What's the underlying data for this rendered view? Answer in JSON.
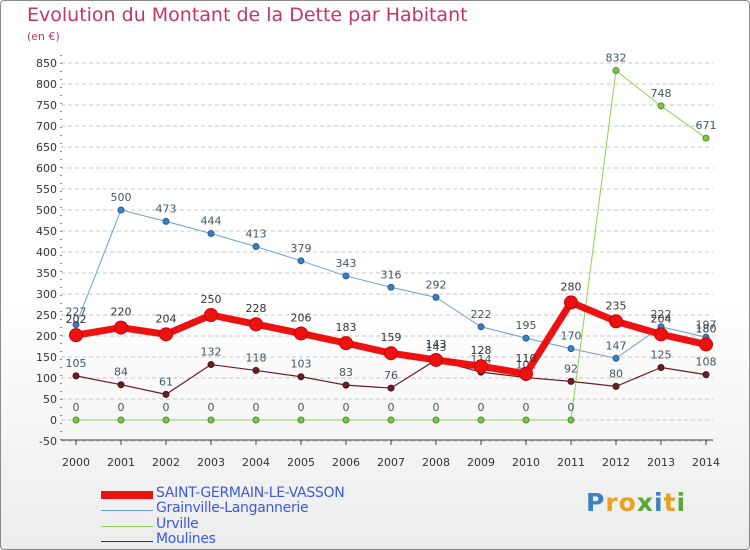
{
  "header": {
    "title": "Evolution du Montant de la Dette par Habitant",
    "unit": "(en €)"
  },
  "chart_data": {
    "type": "line",
    "title": "Evolution du Montant de la Dette par Habitant",
    "subtitle": "(en €)",
    "xlabel": "",
    "ylabel": "",
    "categories": [
      "2000",
      "2001",
      "2002",
      "2003",
      "2004",
      "2005",
      "2006",
      "2007",
      "2008",
      "2009",
      "2010",
      "2011",
      "2012",
      "2013",
      "2014"
    ],
    "ylim": [
      -50,
      850
    ],
    "yticks": [
      -50,
      0,
      50,
      100,
      150,
      200,
      250,
      300,
      350,
      400,
      450,
      500,
      550,
      600,
      650,
      700,
      750,
      800,
      850
    ],
    "grid": "horizontal dashed",
    "legend_position": "bottom-left",
    "series": [
      {
        "name": "Grainville-Langannerie",
        "color": "#6a9ed2",
        "values": [
          227,
          500,
          473,
          444,
          413,
          379,
          343,
          316,
          292,
          222,
          195,
          170,
          147,
          222,
          197
        ]
      },
      {
        "name": "Urville",
        "color": "#8ed058",
        "values": [
          0,
          0,
          0,
          0,
          0,
          0,
          0,
          0,
          0,
          0,
          0,
          0,
          832,
          748,
          671
        ]
      },
      {
        "name": "Moulines",
        "color": "#6b1e22",
        "values": [
          105,
          84,
          61,
          132,
          118,
          103,
          83,
          76,
          143,
          114,
          101,
          92,
          80,
          125,
          108
        ]
      },
      {
        "name": "SAINT-GERMAIN-LE-VASSON",
        "color": "#ee1111",
        "values": [
          202,
          220,
          204,
          250,
          228,
          206,
          183,
          159,
          143,
          128,
          110,
          280,
          235,
          204,
          180
        ]
      }
    ]
  },
  "legend": [
    {
      "label": "SAINT-GERMAIN-LE-VASSON",
      "color": "#ee1111"
    },
    {
      "label": "Grainville-Langannerie",
      "color": "#6a9ed2"
    },
    {
      "label": "Urville",
      "color": "#8ed058"
    },
    {
      "label": "Moulines",
      "color": "#6b1e22"
    }
  ],
  "logo": {
    "letters": [
      "P",
      "r",
      "o",
      "x",
      "i",
      "t",
      "i"
    ],
    "colors": [
      "#3a82c4",
      "#e8a020",
      "#e8a020",
      "#5aa830",
      "#3a82c4",
      "#e8a020",
      "#5aa830"
    ]
  }
}
